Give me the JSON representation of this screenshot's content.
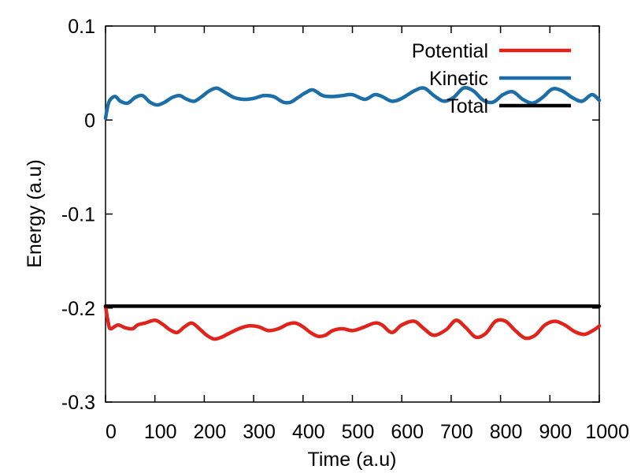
{
  "chart_data": {
    "type": "line",
    "title": "",
    "xlabel": "Time (a.u)",
    "ylabel": "Energy (a.u)",
    "xlim": [
      0,
      1000
    ],
    "ylim": [
      -0.3,
      0.1
    ],
    "x_ticks": [
      0,
      100,
      200,
      300,
      400,
      500,
      600,
      700,
      800,
      900,
      1000
    ],
    "x_tick_labels": [
      "0",
      "100",
      "200",
      "300",
      "400",
      "500",
      "600",
      "700",
      "800",
      "900",
      "1000"
    ],
    "y_ticks": [
      0.1,
      0,
      -0.1,
      -0.2,
      -0.3
    ],
    "y_tick_labels": [
      "0.1",
      "0",
      "-0.1",
      "-0.2",
      "-0.3"
    ],
    "grid": false,
    "legend_position": "top-right",
    "series": [
      {
        "name": "Potential",
        "color": "#e0231b",
        "x": [
          0,
          5,
          10,
          25,
          40,
          55,
          65,
          80,
          100,
          115,
          130,
          145,
          160,
          175,
          190,
          205,
          220,
          235,
          250,
          270,
          290,
          310,
          330,
          350,
          370,
          385,
          400,
          415,
          430,
          445,
          460,
          480,
          500,
          520,
          545,
          560,
          580,
          600,
          625,
          645,
          665,
          690,
          710,
          730,
          750,
          770,
          790,
          810,
          830,
          850,
          870,
          890,
          910,
          930,
          950,
          970,
          990,
          1000
        ],
        "y": [
          -0.198,
          -0.214,
          -0.222,
          -0.218,
          -0.221,
          -0.222,
          -0.218,
          -0.216,
          -0.213,
          -0.217,
          -0.223,
          -0.226,
          -0.22,
          -0.216,
          -0.222,
          -0.229,
          -0.233,
          -0.231,
          -0.227,
          -0.222,
          -0.219,
          -0.22,
          -0.224,
          -0.222,
          -0.217,
          -0.216,
          -0.22,
          -0.226,
          -0.23,
          -0.229,
          -0.224,
          -0.222,
          -0.224,
          -0.221,
          -0.216,
          -0.218,
          -0.226,
          -0.218,
          -0.214,
          -0.222,
          -0.229,
          -0.223,
          -0.213,
          -0.221,
          -0.231,
          -0.227,
          -0.214,
          -0.214,
          -0.224,
          -0.232,
          -0.229,
          -0.218,
          -0.214,
          -0.218,
          -0.225,
          -0.228,
          -0.223,
          -0.219
        ]
      },
      {
        "name": "Kinetic",
        "color": "#1b6ea8",
        "x": [
          0,
          5,
          10,
          20,
          30,
          45,
          60,
          75,
          90,
          105,
          120,
          135,
          150,
          165,
          180,
          195,
          210,
          225,
          240,
          260,
          280,
          300,
          320,
          340,
          360,
          375,
          390,
          405,
          420,
          440,
          460,
          480,
          500,
          525,
          545,
          560,
          580,
          600,
          625,
          645,
          665,
          685,
          705,
          725,
          745,
          765,
          785,
          805,
          825,
          845,
          865,
          885,
          905,
          925,
          945,
          965,
          985,
          1000
        ],
        "y": [
          0.002,
          0.016,
          0.022,
          0.025,
          0.02,
          0.018,
          0.024,
          0.026,
          0.019,
          0.016,
          0.019,
          0.024,
          0.026,
          0.022,
          0.02,
          0.025,
          0.031,
          0.034,
          0.03,
          0.024,
          0.022,
          0.023,
          0.026,
          0.025,
          0.019,
          0.019,
          0.024,
          0.029,
          0.032,
          0.026,
          0.025,
          0.026,
          0.027,
          0.022,
          0.027,
          0.025,
          0.02,
          0.023,
          0.031,
          0.034,
          0.026,
          0.02,
          0.024,
          0.034,
          0.031,
          0.021,
          0.019,
          0.027,
          0.03,
          0.022,
          0.018,
          0.024,
          0.033,
          0.031,
          0.024,
          0.02,
          0.027,
          0.021
        ]
      },
      {
        "name": "Total",
        "color": "#000000",
        "x": [
          0,
          1000
        ],
        "y": [
          -0.198,
          -0.198
        ]
      }
    ]
  }
}
